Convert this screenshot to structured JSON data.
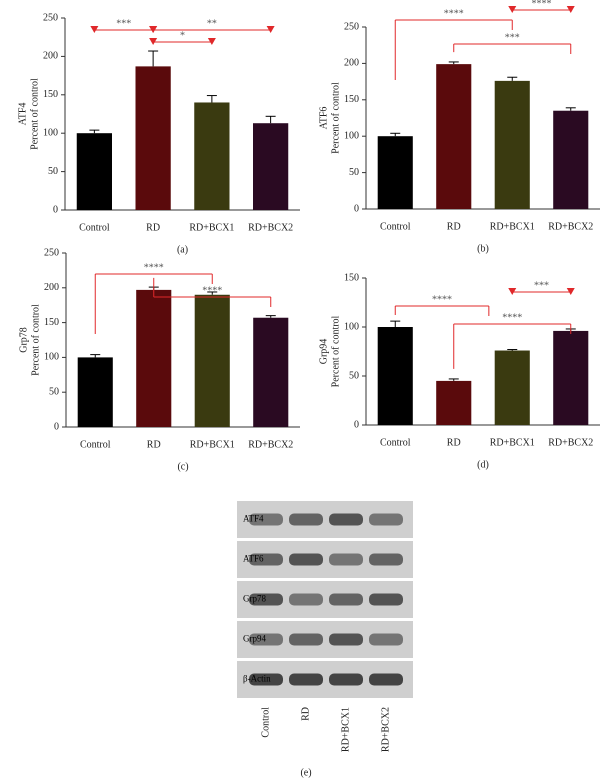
{
  "chart_data": [
    {
      "type": "bar",
      "title": "ATF4",
      "ylabel": "Percent of control",
      "panel": "(a)",
      "categories": [
        "Control",
        "RD",
        "RD+BCX1",
        "RD+BCX2"
      ],
      "values": [
        100,
        187,
        140,
        113
      ],
      "errors": [
        4,
        20,
        9,
        9
      ],
      "colors": [
        "#000000",
        "#5a0a0c",
        "#3a3a10",
        "#2a0a22"
      ],
      "ylim": [
        0,
        250
      ],
      "yticks": [
        0,
        50,
        100,
        150,
        200,
        250
      ],
      "annotations": [
        "***",
        "**",
        "*"
      ]
    },
    {
      "type": "bar",
      "title": "ATF6",
      "ylabel": "Percent of control",
      "panel": "(b)",
      "categories": [
        "Control",
        "RD",
        "RD+BCX1",
        "RD+BCX2"
      ],
      "values": [
        100,
        199,
        176,
        135
      ],
      "errors": [
        4,
        3,
        5,
        4
      ],
      "colors": [
        "#000000",
        "#5a0a0c",
        "#3a3a10",
        "#2a0a22"
      ],
      "ylim": [
        0,
        250
      ],
      "yticks": [
        0,
        50,
        100,
        150,
        200,
        250
      ],
      "annotations": [
        "****",
        "****",
        "***"
      ]
    },
    {
      "type": "bar",
      "title": "Grp78",
      "ylabel": "Percent of control",
      "panel": "(c)",
      "categories": [
        "Control",
        "RD",
        "RD+BCX1",
        "RD+BCX2"
      ],
      "values": [
        100,
        197,
        190,
        157
      ],
      "errors": [
        4,
        4,
        4,
        3
      ],
      "colors": [
        "#000000",
        "#5a0a0c",
        "#3a3a10",
        "#2a0a22"
      ],
      "ylim": [
        0,
        250
      ],
      "yticks": [
        0,
        50,
        100,
        150,
        200,
        250
      ],
      "annotations": [
        "****",
        "****"
      ]
    },
    {
      "type": "bar",
      "title": "Grp94",
      "ylabel": "Percent of control",
      "panel": "(d)",
      "categories": [
        "Control",
        "RD",
        "RD+BCX1",
        "RD+BCX2"
      ],
      "values": [
        100,
        45,
        76,
        96
      ],
      "errors": [
        6,
        2,
        1,
        2
      ],
      "colors": [
        "#000000",
        "#5a0a0c",
        "#3a3a10",
        "#2a0a22"
      ],
      "ylim": [
        0,
        150
      ],
      "yticks": [
        0,
        50,
        100,
        150
      ],
      "annotations": [
        "****",
        "***",
        "****"
      ]
    }
  ],
  "blot": {
    "rows": [
      "ATF4",
      "ATF6",
      "Grp78",
      "Grp94",
      "β-Actin"
    ],
    "lanes": [
      "Control",
      "RD",
      "RD+BCX1",
      "RD+BCX2"
    ],
    "panel": "(e)"
  }
}
